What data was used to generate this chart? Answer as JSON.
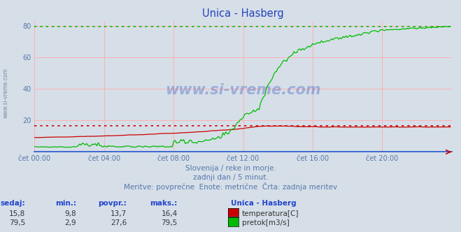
{
  "title": "Unica - Hasberg",
  "background_color": "#d6dfe8",
  "plot_bg_color": "#d6dfe8",
  "temp_color": "#cc0000",
  "flow_color": "#00bb00",
  "watermark_text": "www.si-vreme.com",
  "x_ticks_labels": [
    "čet 00:00",
    "čet 04:00",
    "čet 08:00",
    "čet 12:00",
    "čet 16:00",
    "čet 20:00"
  ],
  "x_ticks_pos": [
    0,
    48,
    96,
    144,
    192,
    240
  ],
  "y_ticks": [
    20,
    40,
    60,
    80
  ],
  "ylim": [
    0,
    83
  ],
  "xlim": [
    0,
    288
  ],
  "subtitle1": "Slovenija / reke in morje.",
  "subtitle2": "zadnji dan / 5 minut.",
  "subtitle3": "Meritve: povprečne  Enote: metrične  Črta: zadnja meritev",
  "table_header": [
    "sedaj:",
    "min.:",
    "povpr.:",
    "maks.:",
    "Unica - Hasberg"
  ],
  "table_temp": [
    "15,8",
    "9,8",
    "13,7",
    "16,4",
    "temperatura[C]"
  ],
  "table_flow": [
    "79,5",
    "2,9",
    "27,6",
    "79,5",
    "pretok[m3/s]"
  ],
  "temp_max": 16.4,
  "flow_max": 79.5,
  "n_points": 288
}
